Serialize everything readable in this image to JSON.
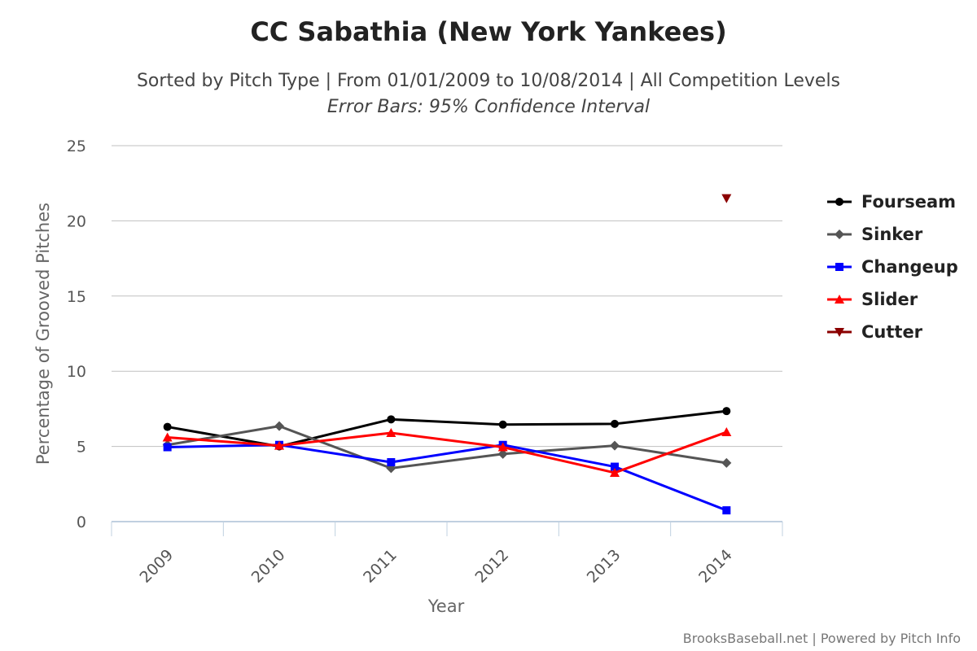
{
  "chart_data": {
    "type": "line",
    "title": "CC Sabathia (New York Yankees)",
    "subtitle": "Sorted by Pitch Type | From 01/01/2009 to 10/08/2014 | All Competition Levels",
    "subtitle2": "Error Bars: 95% Confidence Interval",
    "xlabel": "Year",
    "ylabel": "Percentage of Grooved Pitches",
    "categories": [
      "2009",
      "2010",
      "2011",
      "2012",
      "2013",
      "2014"
    ],
    "ylim": [
      0,
      25
    ],
    "yticks": [
      0,
      5,
      10,
      15,
      20,
      25
    ],
    "grid": true,
    "legend_position": "right",
    "series": [
      {
        "name": "Fourseam",
        "color": "#000000",
        "marker": "circle",
        "values": [
          6.3,
          5.0,
          6.8,
          6.45,
          6.5,
          7.35
        ]
      },
      {
        "name": "Sinker",
        "color": "#555555",
        "marker": "diamond",
        "values": [
          5.1,
          6.35,
          3.55,
          4.5,
          5.05,
          3.9
        ]
      },
      {
        "name": "Changeup",
        "color": "#0000ff",
        "marker": "square",
        "values": [
          4.95,
          5.1,
          3.95,
          5.1,
          3.65,
          0.75
        ]
      },
      {
        "name": "Slider",
        "color": "#ff0000",
        "marker": "triangle-up",
        "values": [
          5.6,
          5.05,
          5.9,
          4.95,
          3.25,
          5.95
        ]
      },
      {
        "name": "Cutter",
        "color": "#8b0000",
        "marker": "triangle-down",
        "values": [
          null,
          null,
          null,
          null,
          null,
          21.5
        ]
      }
    ]
  },
  "credit": "BrooksBaseball.net | Powered by Pitch Info"
}
